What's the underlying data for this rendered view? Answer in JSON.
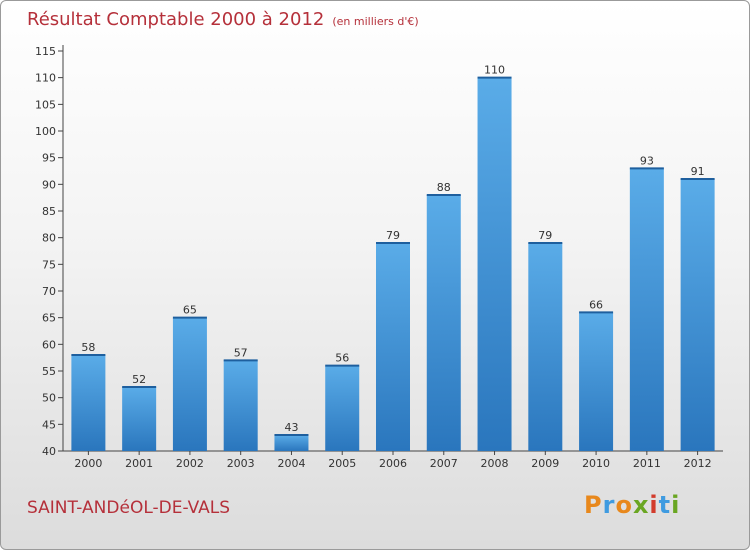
{
  "header": {
    "title": "Résultat Comptable 2000 à 2012",
    "subtitle": "(en milliers d'€)"
  },
  "footer": {
    "commune": "SAINT-ANDéOL-DE-VALS",
    "logo_letters": [
      "P",
      "r",
      "o",
      "x",
      "i",
      "t",
      "i"
    ],
    "logo_colors": [
      "#e8881c",
      "#3f9be0",
      "#e8881c",
      "#6aa622",
      "#d23c2c",
      "#3f9be0",
      "#6aa622"
    ]
  },
  "chart_data": {
    "type": "bar",
    "title": "Résultat Comptable 2000 à 2012",
    "subtitle": "(en milliers d'€)",
    "xlabel": "",
    "ylabel": "",
    "categories": [
      "2000",
      "2001",
      "2002",
      "2003",
      "2004",
      "2005",
      "2006",
      "2007",
      "2008",
      "2009",
      "2010",
      "2011",
      "2012"
    ],
    "values": [
      58,
      52,
      65,
      57,
      43,
      56,
      79,
      88,
      110,
      79,
      66,
      93,
      91
    ],
    "ylim": [
      40,
      115
    ],
    "yticks": [
      40,
      45,
      50,
      55,
      60,
      65,
      70,
      75,
      80,
      85,
      90,
      95,
      100,
      105,
      110,
      115
    ],
    "grid": false,
    "bar_color": "#3a8fd6",
    "bar_color_top": "#5aace8",
    "bar_color_bottom": "#2a76bd"
  }
}
